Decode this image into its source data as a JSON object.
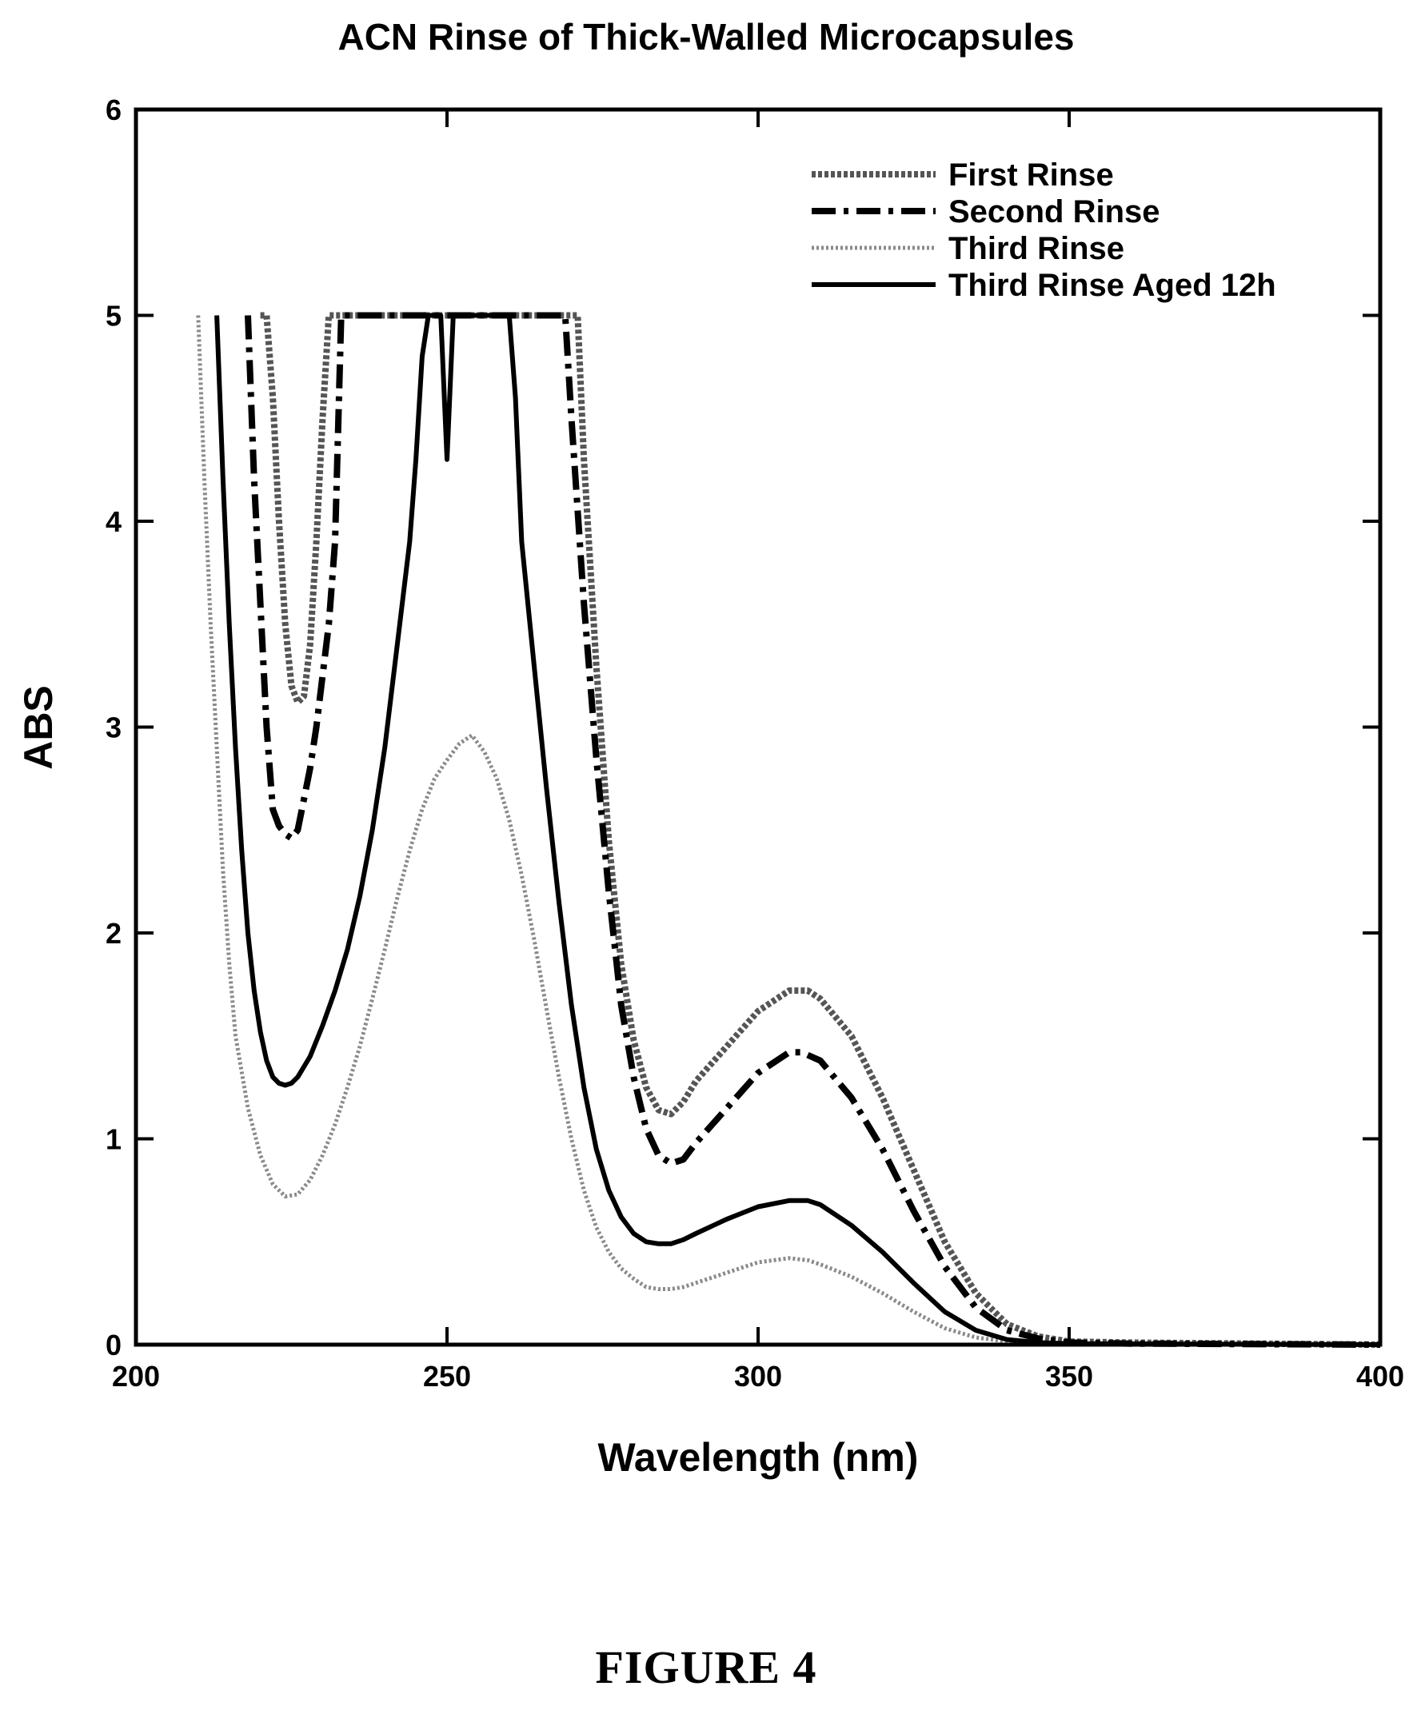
{
  "figure_caption": "FIGURE 4",
  "chart_data": {
    "type": "line",
    "title": "ACN Rinse of Thick-Walled Microcapsules",
    "xlabel": "Wavelength (nm)",
    "ylabel": "ABS",
    "xlim": [
      200,
      400
    ],
    "ylim": [
      0,
      6
    ],
    "xticks": [
      "200",
      "250",
      "300",
      "350",
      "400"
    ],
    "yticks": [
      "0",
      "1",
      "2",
      "3",
      "4",
      "5",
      "6"
    ],
    "grid": false,
    "legend_position": "top-right",
    "series": [
      {
        "name": "First Rinse",
        "style": "dotted-thick",
        "color": "#555555",
        "points": [
          [
            220,
            5.0
          ],
          [
            221,
            5.0
          ],
          [
            222,
            4.6
          ],
          [
            223,
            4.0
          ],
          [
            224,
            3.5
          ],
          [
            225,
            3.2
          ],
          [
            226,
            3.12
          ],
          [
            227,
            3.15
          ],
          [
            228,
            3.4
          ],
          [
            229,
            3.9
          ],
          [
            230,
            4.5
          ],
          [
            231,
            5.0
          ],
          [
            232,
            5.0
          ],
          [
            271,
            5.0
          ],
          [
            272,
            4.3
          ],
          [
            274,
            3.3
          ],
          [
            276,
            2.45
          ],
          [
            278,
            1.85
          ],
          [
            280,
            1.48
          ],
          [
            282,
            1.25
          ],
          [
            284,
            1.14
          ],
          [
            286,
            1.12
          ],
          [
            288,
            1.18
          ],
          [
            290,
            1.28
          ],
          [
            295,
            1.45
          ],
          [
            300,
            1.62
          ],
          [
            305,
            1.72
          ],
          [
            308,
            1.72
          ],
          [
            310,
            1.68
          ],
          [
            315,
            1.5
          ],
          [
            320,
            1.2
          ],
          [
            325,
            0.85
          ],
          [
            330,
            0.5
          ],
          [
            335,
            0.25
          ],
          [
            340,
            0.1
          ],
          [
            345,
            0.04
          ],
          [
            350,
            0.015
          ],
          [
            360,
            0.01
          ],
          [
            400,
            0.0
          ]
        ]
      },
      {
        "name": "Second Rinse",
        "style": "dashdot",
        "color": "#000000",
        "points": [
          [
            218,
            5.0
          ],
          [
            219,
            4.2
          ],
          [
            220,
            3.6
          ],
          [
            221,
            3.0
          ],
          [
            222,
            2.6
          ],
          [
            223,
            2.52
          ],
          [
            224,
            2.48
          ],
          [
            225,
            2.46
          ],
          [
            226,
            2.5
          ],
          [
            227,
            2.65
          ],
          [
            228,
            2.8
          ],
          [
            229,
            3.0
          ],
          [
            230,
            3.25
          ],
          [
            231,
            3.5
          ],
          [
            232,
            3.9
          ],
          [
            233,
            5.0
          ],
          [
            269,
            5.0
          ],
          [
            270,
            4.5
          ],
          [
            272,
            3.6
          ],
          [
            274,
            2.85
          ],
          [
            276,
            2.2
          ],
          [
            278,
            1.65
          ],
          [
            280,
            1.3
          ],
          [
            282,
            1.05
          ],
          [
            284,
            0.92
          ],
          [
            286,
            0.88
          ],
          [
            288,
            0.9
          ],
          [
            290,
            0.98
          ],
          [
            295,
            1.15
          ],
          [
            300,
            1.32
          ],
          [
            305,
            1.42
          ],
          [
            307,
            1.42
          ],
          [
            310,
            1.38
          ],
          [
            315,
            1.2
          ],
          [
            320,
            0.95
          ],
          [
            325,
            0.65
          ],
          [
            330,
            0.38
          ],
          [
            335,
            0.18
          ],
          [
            340,
            0.07
          ],
          [
            345,
            0.03
          ],
          [
            350,
            0.01
          ],
          [
            360,
            0.005
          ],
          [
            400,
            0.0
          ]
        ]
      },
      {
        "name": "Third Rinse",
        "style": "dotted-light",
        "color": "#8a8a8a",
        "points": [
          [
            210,
            5.0
          ],
          [
            211,
            4.2
          ],
          [
            212,
            3.5
          ],
          [
            213,
            2.9
          ],
          [
            214,
            2.3
          ],
          [
            215,
            1.85
          ],
          [
            216,
            1.5
          ],
          [
            218,
            1.15
          ],
          [
            220,
            0.92
          ],
          [
            222,
            0.78
          ],
          [
            224,
            0.72
          ],
          [
            226,
            0.73
          ],
          [
            228,
            0.8
          ],
          [
            230,
            0.92
          ],
          [
            232,
            1.07
          ],
          [
            234,
            1.25
          ],
          [
            236,
            1.45
          ],
          [
            238,
            1.68
          ],
          [
            240,
            1.92
          ],
          [
            242,
            2.17
          ],
          [
            244,
            2.4
          ],
          [
            246,
            2.6
          ],
          [
            248,
            2.75
          ],
          [
            250,
            2.84
          ],
          [
            252,
            2.92
          ],
          [
            254,
            2.96
          ],
          [
            256,
            2.88
          ],
          [
            258,
            2.75
          ],
          [
            260,
            2.55
          ],
          [
            262,
            2.28
          ],
          [
            264,
            1.97
          ],
          [
            266,
            1.63
          ],
          [
            268,
            1.3
          ],
          [
            270,
            1.0
          ],
          [
            272,
            0.75
          ],
          [
            274,
            0.57
          ],
          [
            276,
            0.45
          ],
          [
            278,
            0.37
          ],
          [
            280,
            0.32
          ],
          [
            282,
            0.28
          ],
          [
            284,
            0.27
          ],
          [
            286,
            0.27
          ],
          [
            288,
            0.28
          ],
          [
            290,
            0.3
          ],
          [
            295,
            0.35
          ],
          [
            300,
            0.4
          ],
          [
            305,
            0.42
          ],
          [
            308,
            0.41
          ],
          [
            310,
            0.39
          ],
          [
            315,
            0.33
          ],
          [
            320,
            0.25
          ],
          [
            325,
            0.16
          ],
          [
            330,
            0.08
          ],
          [
            335,
            0.035
          ],
          [
            340,
            0.015
          ],
          [
            345,
            0.005
          ],
          [
            400,
            0.0
          ]
        ]
      },
      {
        "name": "Third Rinse Aged 12h",
        "style": "solid",
        "color": "#000000",
        "points": [
          [
            213,
            5.0
          ],
          [
            214,
            4.2
          ],
          [
            215,
            3.5
          ],
          [
            216,
            2.9
          ],
          [
            217,
            2.4
          ],
          [
            218,
            2.0
          ],
          [
            219,
            1.72
          ],
          [
            220,
            1.52
          ],
          [
            221,
            1.38
          ],
          [
            222,
            1.3
          ],
          [
            223,
            1.27
          ],
          [
            224,
            1.26
          ],
          [
            225,
            1.27
          ],
          [
            226,
            1.3
          ],
          [
            228,
            1.4
          ],
          [
            230,
            1.55
          ],
          [
            232,
            1.72
          ],
          [
            234,
            1.92
          ],
          [
            236,
            2.18
          ],
          [
            238,
            2.5
          ],
          [
            240,
            2.9
          ],
          [
            242,
            3.4
          ],
          [
            244,
            3.9
          ],
          [
            245,
            4.3
          ],
          [
            246,
            4.8
          ],
          [
            247,
            5.0
          ],
          [
            249,
            5.0
          ],
          [
            250,
            4.3
          ],
          [
            251,
            5.0
          ],
          [
            260,
            5.0
          ],
          [
            261,
            4.6
          ],
          [
            262,
            3.9
          ],
          [
            264,
            3.3
          ],
          [
            266,
            2.7
          ],
          [
            268,
            2.15
          ],
          [
            270,
            1.65
          ],
          [
            272,
            1.25
          ],
          [
            274,
            0.95
          ],
          [
            276,
            0.75
          ],
          [
            278,
            0.62
          ],
          [
            280,
            0.54
          ],
          [
            282,
            0.5
          ],
          [
            284,
            0.49
          ],
          [
            286,
            0.49
          ],
          [
            288,
            0.51
          ],
          [
            290,
            0.54
          ],
          [
            295,
            0.61
          ],
          [
            300,
            0.67
          ],
          [
            305,
            0.7
          ],
          [
            308,
            0.7
          ],
          [
            310,
            0.68
          ],
          [
            315,
            0.58
          ],
          [
            320,
            0.45
          ],
          [
            325,
            0.3
          ],
          [
            330,
            0.16
          ],
          [
            335,
            0.07
          ],
          [
            340,
            0.025
          ],
          [
            345,
            0.01
          ],
          [
            350,
            0.005
          ],
          [
            400,
            0.0
          ]
        ]
      }
    ]
  }
}
